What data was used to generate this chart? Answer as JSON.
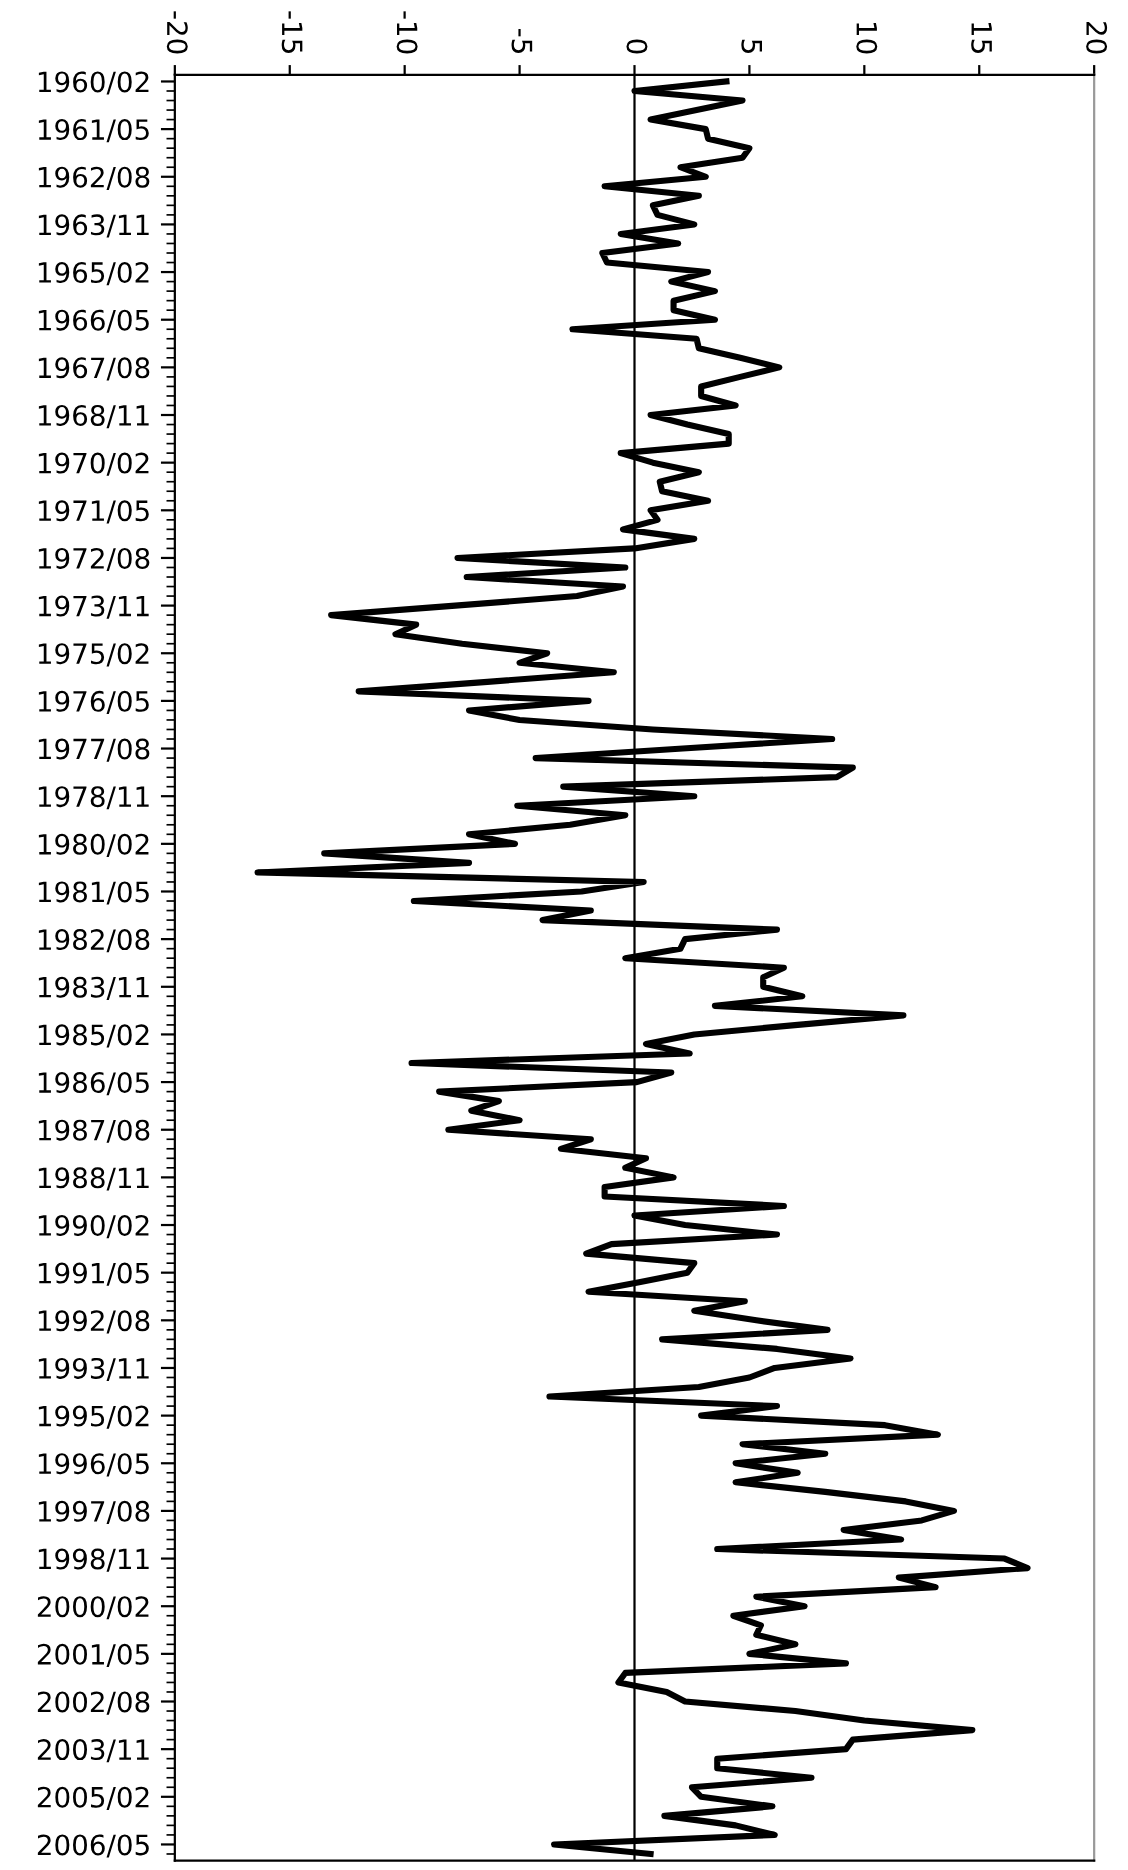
{
  "chart_data": {
    "type": "line",
    "orientation": "horizontal",
    "categories": [
      "1960/02",
      null,
      null,
      null,
      null,
      "1961/05",
      null,
      null,
      null,
      null,
      "1962/08",
      null,
      null,
      null,
      null,
      "1963/11",
      null,
      null,
      null,
      null,
      "1965/02",
      null,
      null,
      null,
      null,
      "1966/05",
      null,
      null,
      null,
      null,
      "1967/08",
      null,
      null,
      null,
      null,
      "1968/11",
      null,
      null,
      null,
      null,
      "1970/02",
      null,
      null,
      null,
      null,
      "1971/05",
      null,
      null,
      null,
      null,
      "1972/08",
      null,
      null,
      null,
      null,
      "1973/11",
      null,
      null,
      null,
      null,
      "1975/02",
      null,
      null,
      null,
      null,
      "1976/05",
      null,
      null,
      null,
      null,
      "1977/08",
      null,
      null,
      null,
      null,
      "1978/11",
      null,
      null,
      null,
      null,
      "1980/02",
      null,
      null,
      null,
      null,
      "1981/05",
      null,
      null,
      null,
      null,
      "1982/08",
      null,
      null,
      null,
      null,
      "1983/11",
      null,
      null,
      null,
      null,
      "1985/02",
      null,
      null,
      null,
      null,
      "1986/05",
      null,
      null,
      null,
      null,
      "1987/08",
      null,
      null,
      null,
      null,
      "1988/11",
      null,
      null,
      null,
      null,
      "1990/02",
      null,
      null,
      null,
      null,
      "1991/05",
      null,
      null,
      null,
      null,
      "1992/08",
      null,
      null,
      null,
      null,
      "1993/11",
      null,
      null,
      null,
      null,
      "1995/02",
      null,
      null,
      null,
      null,
      "1996/05",
      null,
      null,
      null,
      null,
      "1997/08",
      null,
      null,
      null,
      null,
      "1998/11",
      null,
      null,
      null,
      null,
      "2000/02",
      null,
      null,
      null,
      null,
      "2001/05",
      null,
      null,
      null,
      null,
      "2002/08",
      null,
      null,
      null,
      null,
      "2003/11",
      null,
      null,
      null,
      null,
      "2005/02",
      null,
      null,
      null,
      null,
      "2006/05",
      null
    ],
    "series": [
      {
        "color": "#000000",
        "values": [
          4.0,
          0,
          4.7,
          2.7,
          0.7,
          3.1,
          3.2,
          5.0,
          4.7,
          2.0,
          3.1,
          -1.3,
          2.8,
          0.8,
          1.0,
          2.6,
          -0.6,
          1.9,
          -1.4,
          -1.2,
          3.2,
          1.6,
          3.5,
          1.7,
          1.7,
          3.5,
          -2.7,
          2.7,
          2.8,
          4.6,
          6.3,
          4.6,
          2.9,
          2.9,
          4.4,
          0.7,
          2.3,
          4.1,
          4.1,
          -0.6,
          0.8,
          2.8,
          1.1,
          1.2,
          3.2,
          0.7,
          1.0,
          -0.5,
          2.6,
          0.0,
          -7.7,
          -0.4,
          -7.3,
          -0.5,
          -2.5,
          -7.8,
          -13.2,
          -9.5,
          -10.4,
          -7.5,
          -3.8,
          -5.0,
          -0.9,
          -6.4,
          -12.0,
          -2.0,
          -7.2,
          -5.0,
          0.8,
          8.6,
          2.1,
          -4.3,
          9.5,
          8.8,
          -3.1,
          2.6,
          -5.1,
          -0.4,
          -2.8,
          -7.2,
          -5.2,
          -13.5,
          -7.2,
          -16.4,
          0.4,
          -2.3,
          -9.6,
          -1.9,
          -4.0,
          6.2,
          2.2,
          2.0,
          -0.4,
          6.5,
          5.6,
          5.6,
          7.3,
          3.5,
          11.7,
          7.1,
          2.6,
          0.5,
          2.4,
          -9.7,
          1.6,
          0.1,
          -8.5,
          -5.9,
          -7.1,
          -5.0,
          -8.1,
          -1.9,
          -3.2,
          0.5,
          -0.4,
          1.7,
          -1.3,
          -1.3,
          6.5,
          0.0,
          2.2,
          6.2,
          -1.0,
          -2.1,
          2.6,
          2.3,
          0.2,
          -2.0,
          4.8,
          2.6,
          5.3,
          8.4,
          1.2,
          6.2,
          9.4,
          6.1,
          5.0,
          2.8,
          -3.7,
          6.2,
          2.9,
          10.9,
          13.2,
          4.7,
          8.3,
          4.4,
          7.1,
          4.4,
          8.3,
          11.8,
          13.9,
          12.5,
          9.1,
          11.6,
          3.6,
          16.1,
          17.1,
          11.5,
          13.1,
          5.3,
          7.4,
          4.3,
          5.5,
          5.3,
          7.0,
          5.0,
          9.2,
          -0.4,
          -0.7,
          1.4,
          2.2,
          7.0,
          10.0,
          14.7,
          9.5,
          9.2,
          3.6,
          3.6,
          7.7,
          2.5,
          2.9,
          6.0,
          1.3,
          4.4,
          6.1,
          -3.5,
          0.7
        ]
      }
    ],
    "xlim": [
      -20,
      20
    ],
    "xticks": [
      -20,
      -15,
      -10,
      -5,
      0,
      5,
      10,
      15,
      20
    ],
    "ref_lines": [
      {
        "axis": "x",
        "value": 0,
        "color": "#000000"
      }
    ],
    "grid": false,
    "legend": false,
    "marker": "none",
    "line_style": "solid"
  }
}
